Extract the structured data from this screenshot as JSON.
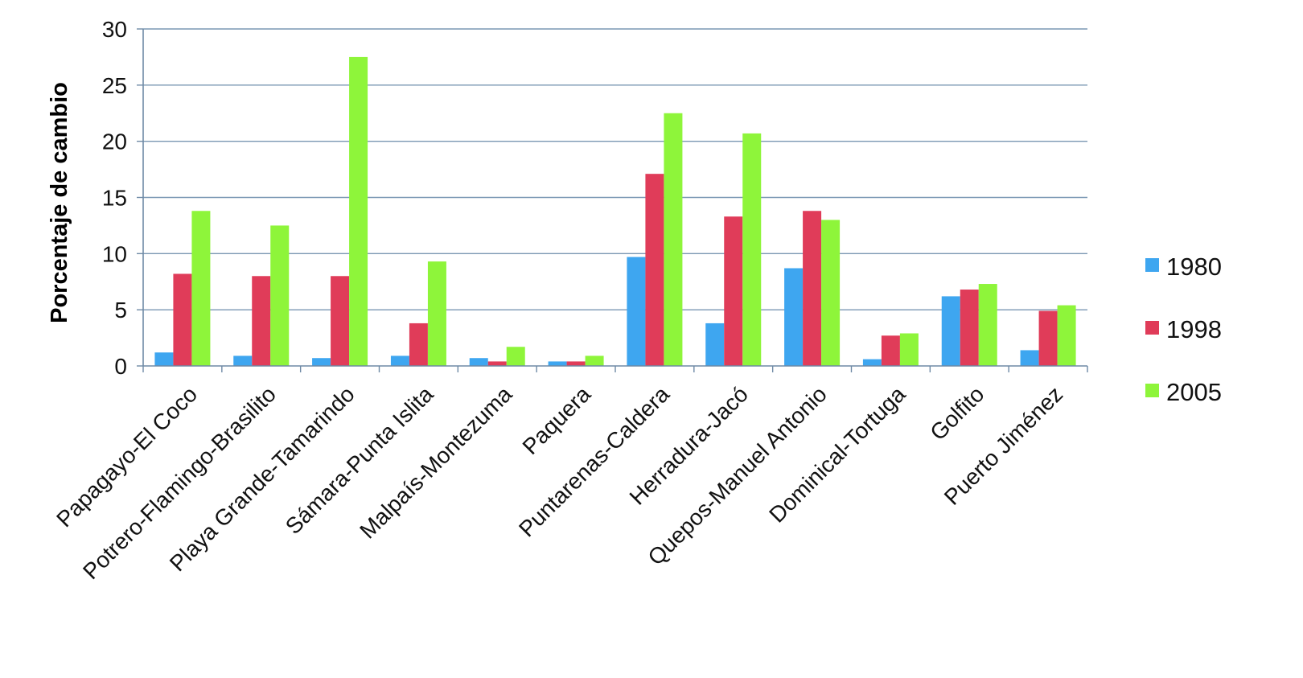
{
  "chart_data": {
    "type": "bar",
    "ylabel": "Porcentaje de cambio",
    "xlabel": "",
    "ylim": [
      0,
      30
    ],
    "yticks": [
      0,
      5,
      10,
      15,
      20,
      25,
      30
    ],
    "grid": true,
    "legend_position": "right",
    "categories": [
      "Papagayo-El Coco",
      "Potrero-Flamingo-Brasilito",
      "Playa Grande-Tamarindo",
      "Sámara-Punta Islita",
      "Malpaís-Montezuma",
      "Paquera",
      "Puntarenas-Caldera",
      "Herradura-Jacó",
      "Quepos-Manuel Antonio",
      "Dominical-Tortuga",
      "Golfito",
      "Puerto Jiménez"
    ],
    "series": [
      {
        "name": "1980",
        "color": "#3ea6f0",
        "values": [
          1.2,
          0.9,
          0.7,
          0.9,
          0.7,
          0.4,
          9.7,
          3.8,
          8.7,
          0.6,
          6.2,
          1.4
        ]
      },
      {
        "name": "1998",
        "color": "#e03c59",
        "values": [
          8.2,
          8.0,
          8.0,
          3.8,
          0.4,
          0.4,
          17.1,
          13.3,
          13.8,
          2.7,
          6.8,
          4.9
        ]
      },
      {
        "name": "2005",
        "color": "#8ef53a",
        "values": [
          13.8,
          12.5,
          27.5,
          9.3,
          1.7,
          0.9,
          22.5,
          20.7,
          13.0,
          2.9,
          7.3,
          5.4
        ]
      }
    ]
  }
}
